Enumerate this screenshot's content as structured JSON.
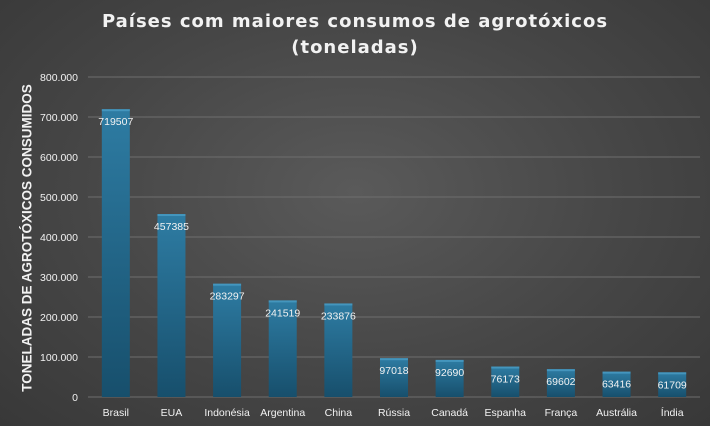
{
  "chart_data": {
    "type": "bar",
    "title_lines": [
      "Países com maiores consumos de agrotóxicos",
      "(toneladas)"
    ],
    "xlabel": "",
    "ylabel": "TONELADAS DE AGROTÓXICOS CONSUMIDOS",
    "ylim": [
      0,
      800000
    ],
    "yticks": [
      0,
      100000,
      200000,
      300000,
      400000,
      500000,
      600000,
      700000,
      800000
    ],
    "ytick_labels": [
      "0",
      "100.000",
      "200.000",
      "300.000",
      "400.000",
      "500.000",
      "600.000",
      "700.000",
      "800.000"
    ],
    "categories": [
      "Brasil",
      "EUA",
      "Indonésia",
      "Argentina",
      "China",
      "Rússia",
      "Canadá",
      "Espanha",
      "França",
      "Austrália",
      "Índia"
    ],
    "values": [
      719507,
      457385,
      283297,
      241519,
      233876,
      97018,
      92690,
      76173,
      69602,
      63416,
      61709
    ],
    "data_labels": [
      "719507",
      "457385",
      "283297",
      "241519",
      "233876",
      "97018",
      "92690",
      "76173",
      "69602",
      "63416",
      "61709"
    ],
    "grid": true,
    "legend": "none",
    "colors": {
      "bar_top": "#2e7ca3",
      "bar_bottom": "#174f6c",
      "grid": "#6e6e6e",
      "text": "#f2f2f2"
    }
  }
}
